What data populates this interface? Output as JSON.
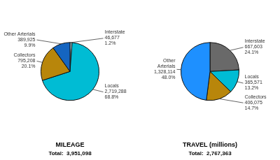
{
  "chart_data": [
    {
      "type": "pie",
      "title": "MILEAGE",
      "subtitle": "Total:  3,951,098",
      "values": [
        46677,
        2719288,
        795208,
        389925
      ],
      "value_labels": [
        "Interstate\n46,677\n1.2%",
        "Locals\n2,719,288\n68.8%",
        "Collectors\n795,208\n20.1%",
        "Other Arterials\n389,925\n9.9%"
      ],
      "colors": [
        "#add8e6",
        "#00bcd4",
        "#b8860b",
        "#1565c0"
      ]
    },
    {
      "type": "pie",
      "title": "TRAVEL (millions)",
      "subtitle": "Total:  2,767,363",
      "values": [
        667603,
        365571,
        406075,
        1328114
      ],
      "value_labels": [
        "Interstate\n667,603\n24.1%",
        "Locals\n365,571\n13.2%",
        "Collectors\n406,075\n14.7%",
        "Other\nArterials\n1,328,114\n48.0%"
      ],
      "colors": [
        "#696969",
        "#00bcd4",
        "#b8860b",
        "#1e90ff"
      ]
    }
  ]
}
